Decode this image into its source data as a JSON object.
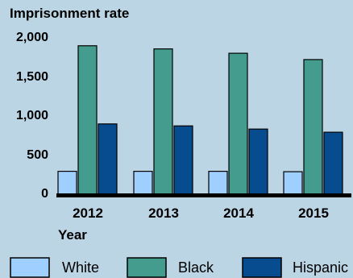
{
  "chart_data": {
    "type": "bar",
    "title": "Imprisonment rate",
    "xlabel": "Year",
    "ylabel": "",
    "categories": [
      "2012",
      "2013",
      "2014",
      "2015"
    ],
    "series": [
      {
        "name": "White",
        "color": "#9fcfff",
        "values": [
          300,
          300,
          300,
          295
        ]
      },
      {
        "name": "Black",
        "color": "#449c8f",
        "values": [
          1890,
          1850,
          1795,
          1715
        ]
      },
      {
        "name": "Hispanic",
        "color": "#064c8f",
        "values": [
          900,
          875,
          835,
          795
        ]
      }
    ],
    "yticks": [
      "2,000",
      "1,500",
      "1,000",
      "500",
      "0"
    ],
    "ytick_values": [
      2000,
      1500,
      1000,
      500,
      0
    ],
    "ylim": [
      0,
      2000
    ],
    "grid": false,
    "legend_position": "bottom"
  }
}
